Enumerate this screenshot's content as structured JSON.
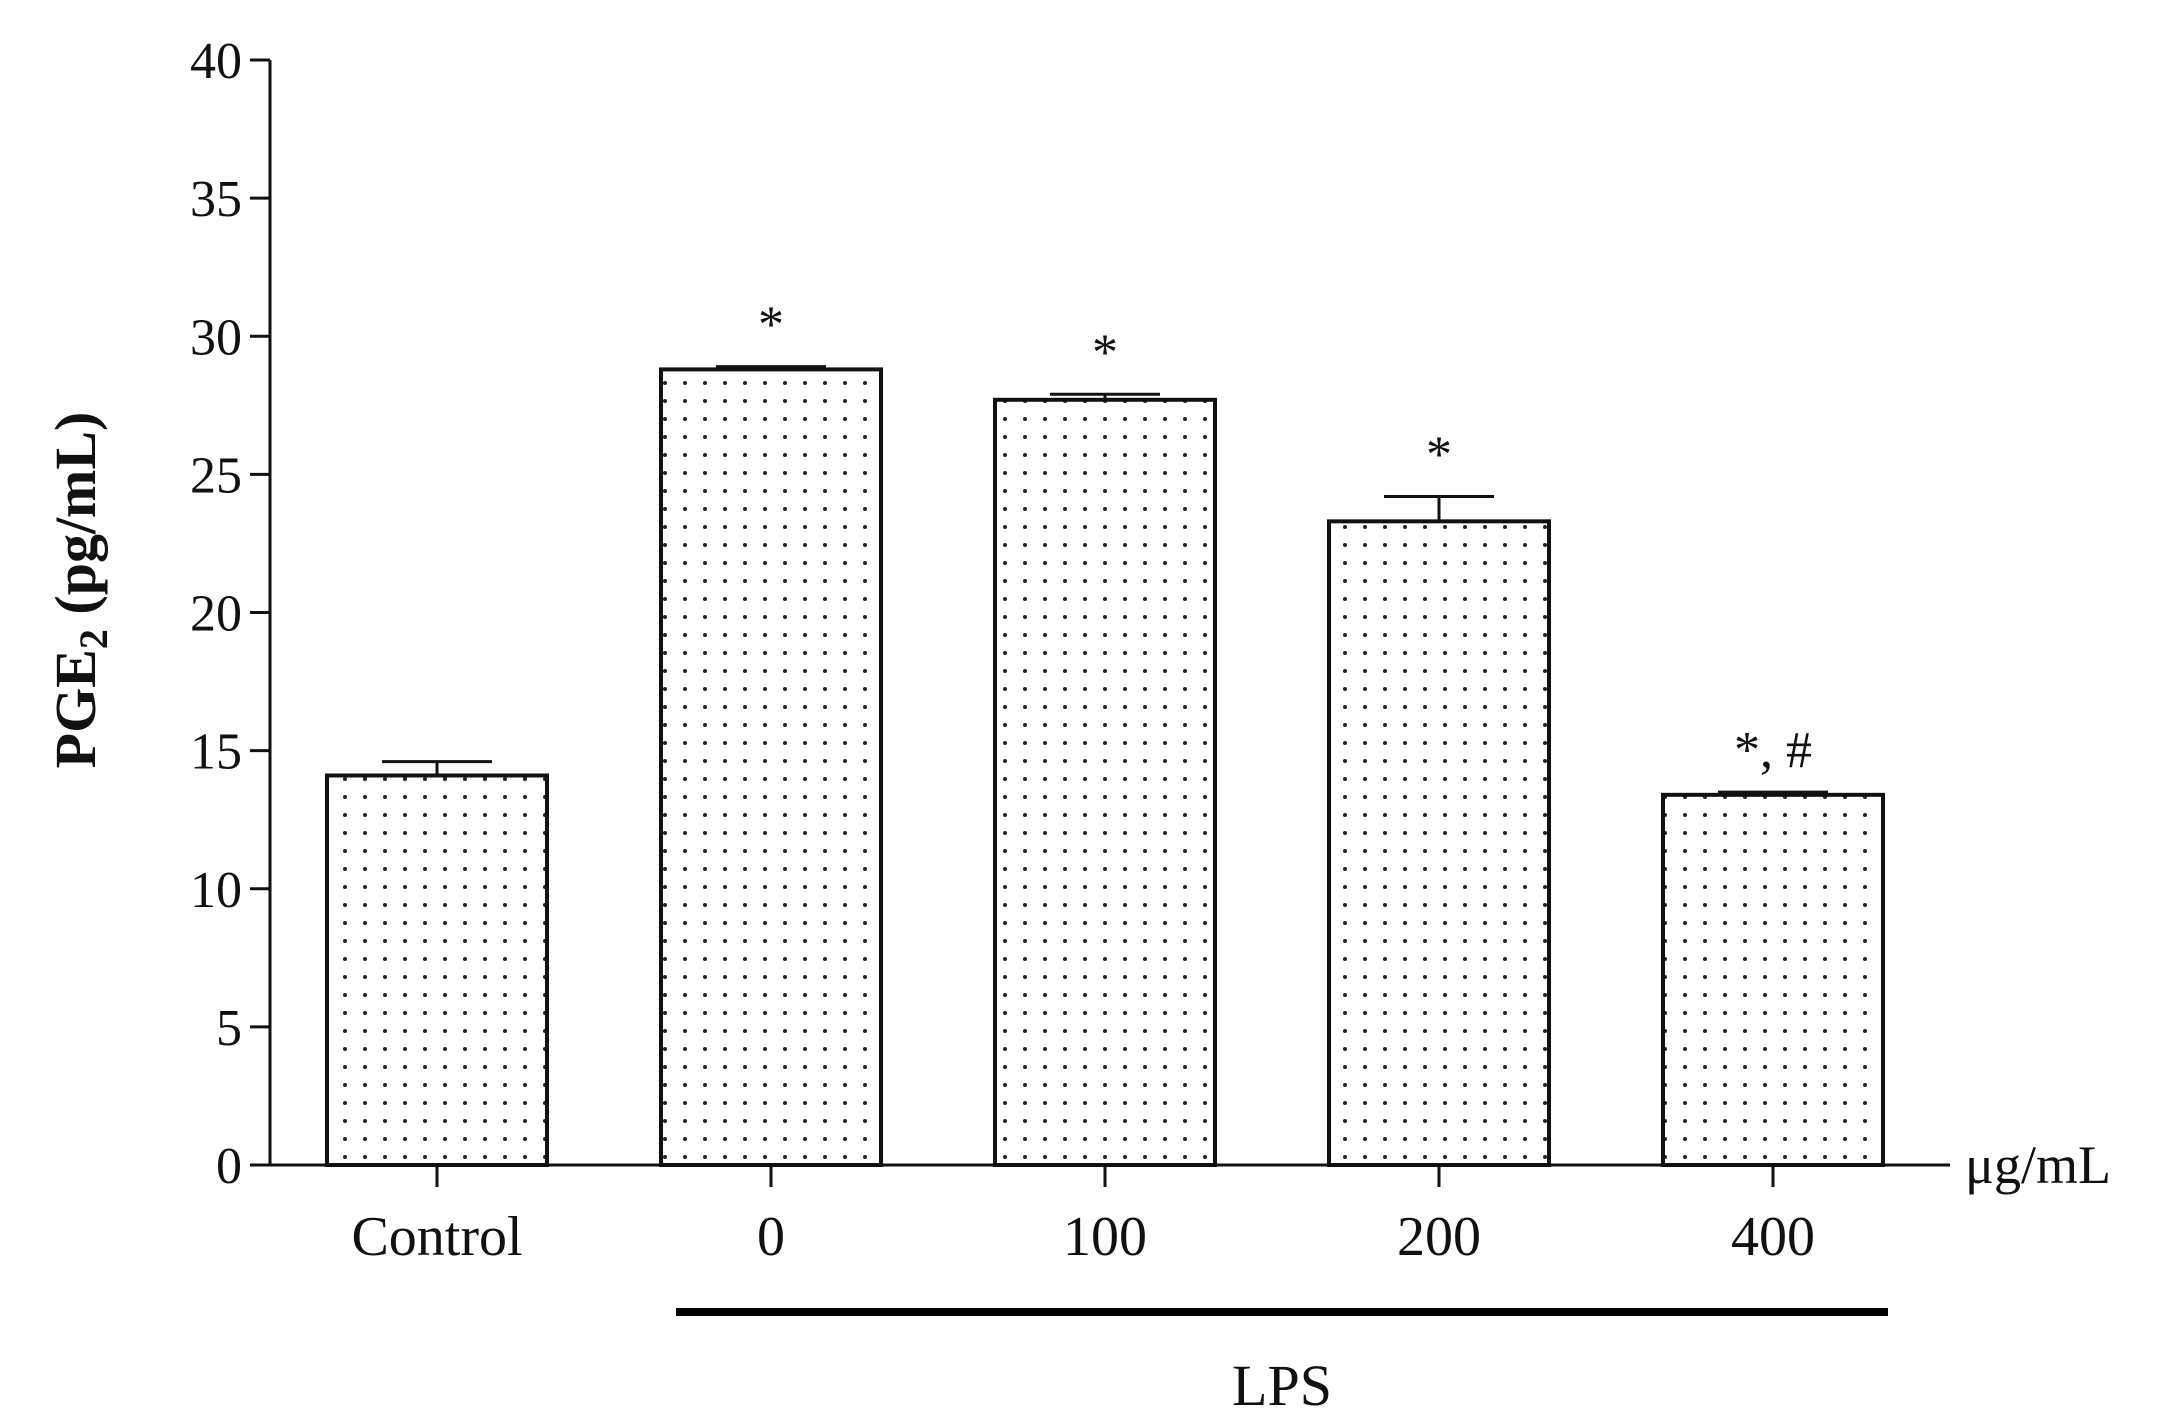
{
  "chart_data": {
    "type": "bar",
    "categories": [
      "Control",
      "0",
      "100",
      "200",
      "400"
    ],
    "values": [
      14.1,
      28.8,
      27.7,
      23.3,
      13.4
    ],
    "errors": [
      0.5,
      0.1,
      0.2,
      0.9,
      0.1
    ],
    "annotations": [
      "",
      "*",
      "*",
      "*",
      "*, #"
    ],
    "ylabel_main": "PGE",
    "ylabel_sub": "2",
    "ylabel_tail": " (pg/mL)",
    "xunit": "μg/mL",
    "group_label": "LPS",
    "group_span": [
      1,
      4
    ],
    "ylim": [
      0,
      40
    ],
    "yticks": [
      "0",
      "5",
      "10",
      "15",
      "20",
      "25",
      "30",
      "35",
      "40"
    ],
    "grid": false
  }
}
